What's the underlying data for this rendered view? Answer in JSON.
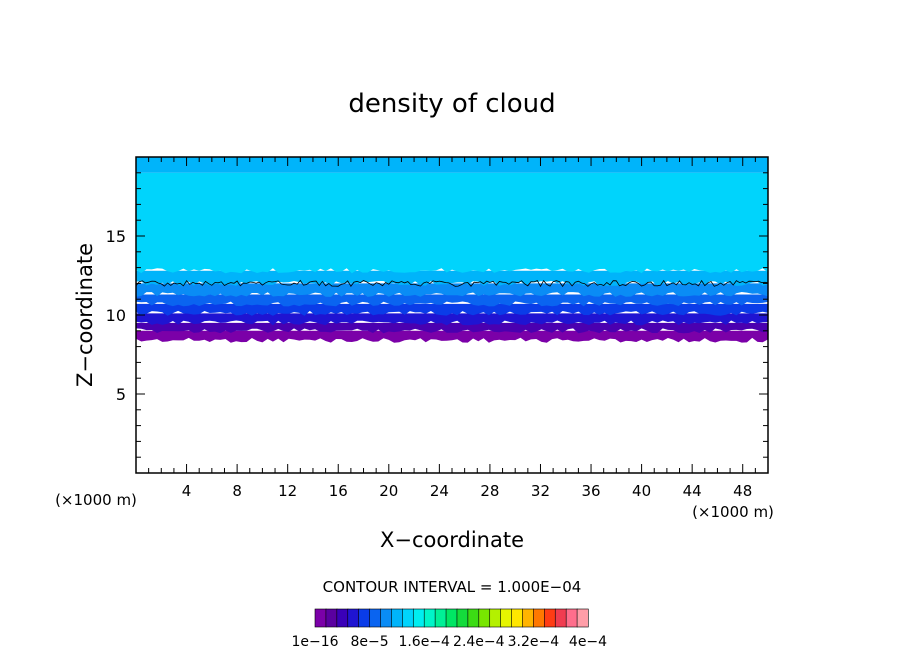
{
  "chart_data": {
    "type": "heatmap",
    "title": "density of cloud",
    "xlabel": "X−coordinate",
    "ylabel": "Z−coordinate",
    "x_unit": "(×1000 m)",
    "y_unit": "(×1000 m)",
    "xlim": [
      0,
      50
    ],
    "ylim": [
      0,
      20
    ],
    "x_ticks": [
      4,
      8,
      12,
      16,
      20,
      24,
      28,
      32,
      36,
      40,
      44,
      48
    ],
    "y_ticks": [
      5,
      10,
      15
    ],
    "contour_interval_text": "CONTOUR INTERVAL = 1.000E−04",
    "colorbar": {
      "colors": [
        "#7b00a8",
        "#5a00a0",
        "#3a00b8",
        "#1f14d2",
        "#0a3ce8",
        "#0a64f0",
        "#0a8cf5",
        "#00b4fa",
        "#00d4fc",
        "#00eef0",
        "#00f5c8",
        "#00f096",
        "#00e664",
        "#14dc3c",
        "#3cdc14",
        "#78e600",
        "#b4f000",
        "#e6f500",
        "#ffe600",
        "#ffb400",
        "#ff7800",
        "#ff3c14",
        "#f03c50",
        "#ff6e8c",
        "#ff9ea8"
      ],
      "tick_labels": [
        "1e−16",
        "8e−5",
        "1.6e−4",
        "2.4e−4",
        "3.2e−4",
        "4e−4"
      ]
    },
    "bands": [
      {
        "z_from": 8.4,
        "z_to": 9.0,
        "color": "#7b00a8"
      },
      {
        "z_from": 9.0,
        "z_to": 9.5,
        "color": "#4a00b0"
      },
      {
        "z_from": 9.5,
        "z_to": 10.1,
        "color": "#1f14d2"
      },
      {
        "z_from": 10.1,
        "z_to": 10.7,
        "color": "#0a3ce8"
      },
      {
        "z_from": 10.7,
        "z_to": 11.3,
        "color": "#0a64f0"
      },
      {
        "z_from": 11.3,
        "z_to": 12.0,
        "color": "#0a8cf5"
      },
      {
        "z_from": 12.0,
        "z_to": 12.8,
        "color": "#00b4fa"
      },
      {
        "z_from": 12.8,
        "z_to": 19.0,
        "color": "#00d4fc"
      },
      {
        "z_from": 19.0,
        "z_to": 20.0,
        "color": "#00b4fa"
      }
    ],
    "contour_line_z": 12.0,
    "grid": false
  }
}
